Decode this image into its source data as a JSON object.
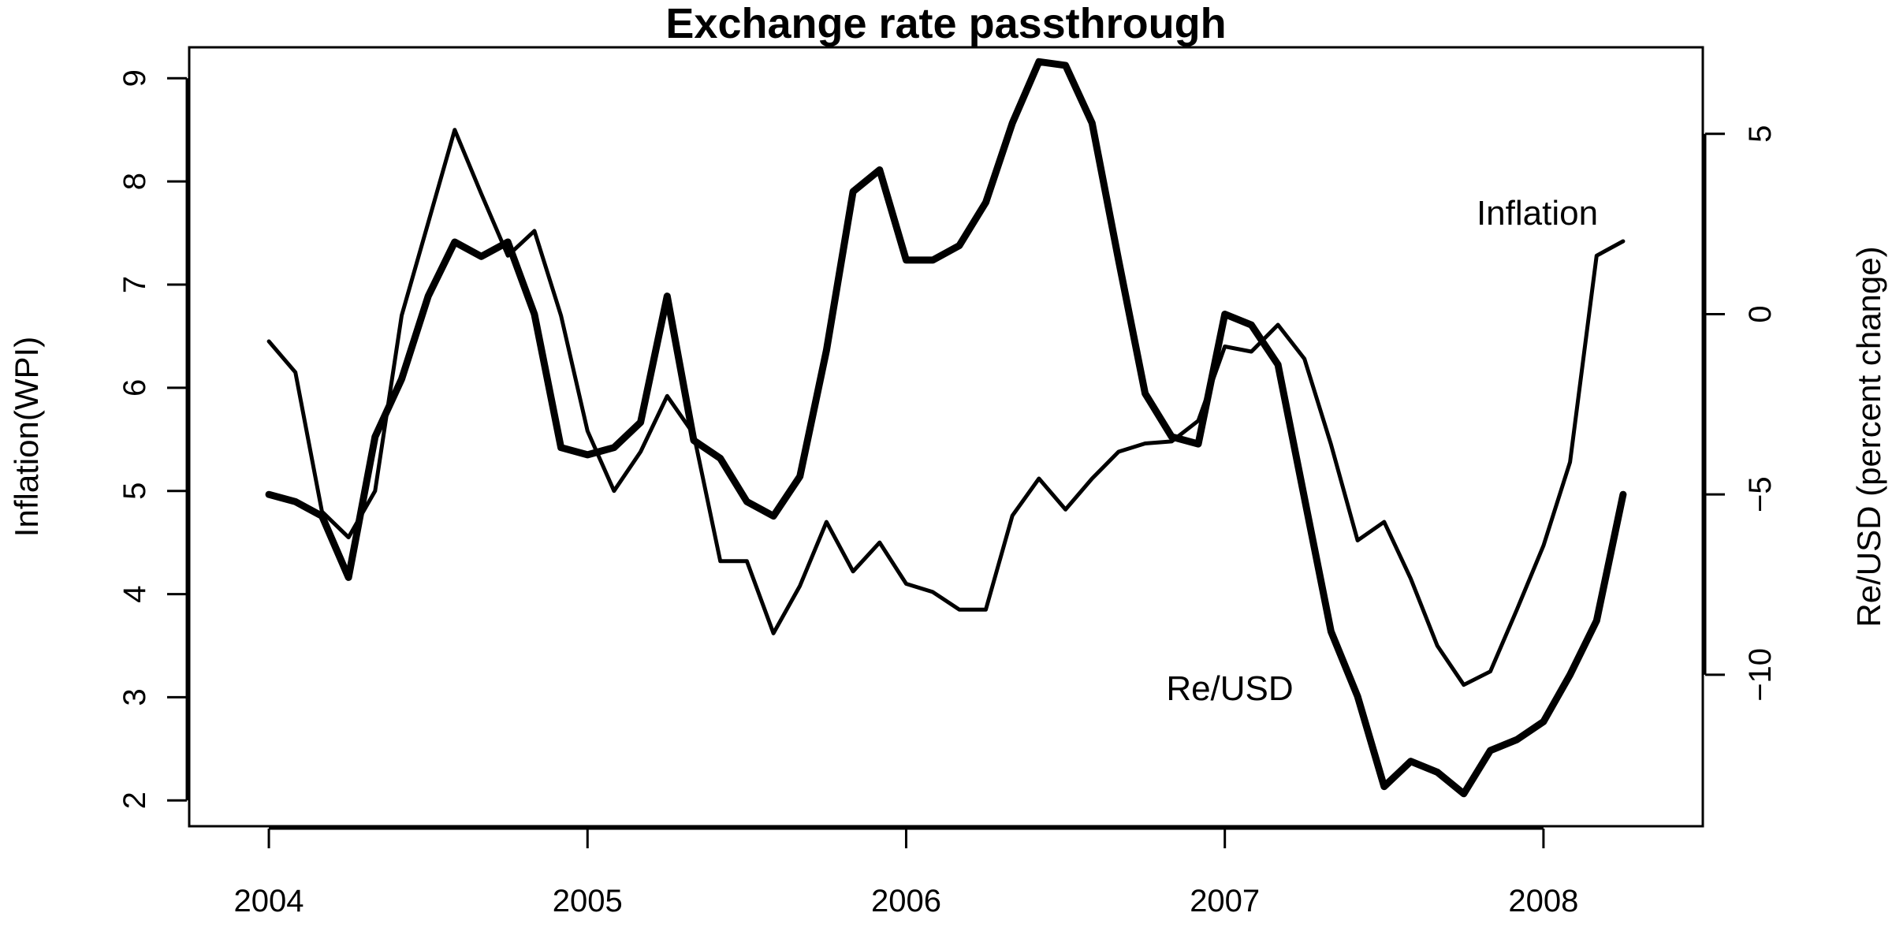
{
  "chart_data": {
    "type": "line",
    "title": "Exchange rate passthrough",
    "xlabel": "",
    "ylabel_left": "Inflation(WPI)",
    "ylabel_right": "Re/USD (percent change)",
    "x_ticks": [
      "2004",
      "2005",
      "2006",
      "2007",
      "2008"
    ],
    "y_left_ticks": [
      "2",
      "3",
      "4",
      "5",
      "6",
      "7",
      "8",
      "9"
    ],
    "y_right_ticks": [
      "−10",
      "−5",
      "0",
      "5"
    ],
    "xlim": [
      "2003-10",
      "2008-07"
    ],
    "ylim_left": [
      1.75,
      9.3
    ],
    "ylim_right": [
      -14.2,
      7.4
    ],
    "grid": false,
    "legend": "none",
    "annotations": [
      {
        "text": "Inflation",
        "series": "Inflation"
      },
      {
        "text": "Re/USD",
        "series": "Re/USD"
      }
    ],
    "series": [
      {
        "name": "Inflation",
        "axis": "left",
        "line_weight": "thin",
        "x": [
          "2004-01",
          "2004-02",
          "2004-03",
          "2004-04",
          "2004-05",
          "2004-06",
          "2004-07",
          "2004-08",
          "2004-09",
          "2004-10",
          "2004-11",
          "2004-12",
          "2005-01",
          "2005-02",
          "2005-03",
          "2005-04",
          "2005-05",
          "2005-06",
          "2005-07",
          "2005-08",
          "2005-09",
          "2005-10",
          "2005-11",
          "2005-12",
          "2006-01",
          "2006-02",
          "2006-03",
          "2006-04",
          "2006-05",
          "2006-06",
          "2006-07",
          "2006-08",
          "2006-09",
          "2006-10",
          "2006-11",
          "2006-12",
          "2007-01",
          "2007-02",
          "2007-03",
          "2007-04",
          "2007-05",
          "2007-06",
          "2007-07",
          "2007-08",
          "2007-09",
          "2007-10",
          "2007-11",
          "2007-12",
          "2008-01",
          "2008-02",
          "2008-03",
          "2008-04"
        ],
        "values": [
          6.45,
          6.15,
          4.8,
          4.55,
          5.0,
          6.7,
          7.6,
          8.5,
          7.88,
          7.28,
          7.52,
          6.7,
          5.58,
          5.0,
          5.38,
          5.92,
          5.55,
          4.32,
          4.32,
          3.62,
          4.08,
          4.7,
          4.22,
          4.5,
          4.1,
          4.02,
          3.85,
          3.85,
          4.76,
          5.12,
          4.82,
          5.12,
          5.38,
          5.46,
          5.48,
          5.68,
          6.4,
          6.35,
          6.61,
          6.28,
          5.45,
          4.52,
          4.7,
          4.15,
          3.5,
          3.12,
          3.25,
          3.85,
          4.47,
          5.28,
          7.28,
          7.42
        ]
      },
      {
        "name": "Re/USD",
        "axis": "right",
        "line_weight": "thick",
        "x": [
          "2004-01",
          "2004-02",
          "2004-03",
          "2004-04",
          "2004-05",
          "2004-06",
          "2004-07",
          "2004-08",
          "2004-09",
          "2004-10",
          "2004-11",
          "2004-12",
          "2005-01",
          "2005-02",
          "2005-03",
          "2005-04",
          "2005-05",
          "2005-06",
          "2005-07",
          "2005-08",
          "2005-09",
          "2005-10",
          "2005-11",
          "2005-12",
          "2006-01",
          "2006-02",
          "2006-03",
          "2006-04",
          "2006-05",
          "2006-06",
          "2006-07",
          "2006-08",
          "2006-09",
          "2006-10",
          "2006-11",
          "2006-12",
          "2007-01",
          "2007-02",
          "2007-03",
          "2007-04",
          "2007-05",
          "2007-06",
          "2007-07",
          "2007-08",
          "2007-09",
          "2007-10",
          "2007-11",
          "2007-12",
          "2008-01",
          "2008-02",
          "2008-03",
          "2008-04"
        ],
        "values": [
          -5.0,
          -5.2,
          -5.6,
          -7.3,
          -3.4,
          -1.8,
          0.5,
          2.0,
          1.6,
          2.0,
          0.0,
          -3.7,
          -3.9,
          -3.7,
          -3.0,
          0.5,
          -3.5,
          -4.0,
          -5.2,
          -5.6,
          -4.5,
          -1.0,
          3.4,
          4.0,
          1.5,
          1.5,
          1.9,
          3.1,
          5.3,
          7.0,
          6.9,
          5.3,
          1.5,
          -2.2,
          -3.4,
          -3.6,
          0.0,
          -0.3,
          -1.4,
          -5.1,
          -8.8,
          -10.6,
          -13.1,
          -12.4,
          -12.7,
          -13.3,
          -12.1,
          -11.8,
          -11.3,
          -10.0,
          -8.5,
          -5.0
        ]
      }
    ]
  }
}
